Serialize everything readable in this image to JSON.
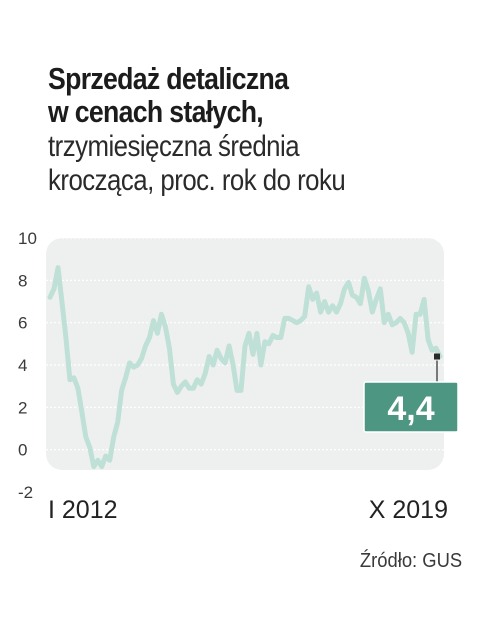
{
  "title": {
    "line1": "Sprzedaż detaliczna",
    "line2": "w cenach stałych,"
  },
  "subtitle": {
    "line1": "trzymiesięczna średnia",
    "line2": "krocząca, proc. rok do roku"
  },
  "source": "Źródło: GUS",
  "colors": {
    "line": "#bfe0d6",
    "panel": "#eef0ef",
    "callout_bg": "#4c9682",
    "callout_text": "#ffffff",
    "text": "#222222"
  },
  "chart_data": {
    "type": "line",
    "x_start_label": "I 2012",
    "x_end_label": "X 2019",
    "y_ticks": [
      "10",
      "8",
      "6",
      "4",
      "2",
      "0",
      "-2"
    ],
    "ylim": [
      -2,
      10
    ],
    "grid": true,
    "callout": {
      "label": "4,4",
      "value": 4.4
    },
    "series": [
      {
        "values": [
          7.2,
          7.6,
          8.6,
          7.0,
          5.3,
          3.3,
          3.4,
          2.9,
          1.8,
          0.6,
          0.1,
          -0.8,
          -0.5,
          -0.8,
          -0.3,
          -0.5,
          0.6,
          1.3,
          2.8,
          3.4,
          4.1,
          3.9,
          4.0,
          4.3,
          4.9,
          5.3,
          6.1,
          5.5,
          6.4,
          5.8,
          4.8,
          3.1,
          2.7,
          3.0,
          3.2,
          2.9,
          2.9,
          3.3,
          3.1,
          3.6,
          4.4,
          4.0,
          4.7,
          4.3,
          4.1,
          4.9,
          4.0,
          2.8,
          2.8,
          4.9,
          5.5,
          4.5,
          5.5,
          4.0,
          5.1,
          5.0,
          5.4,
          5.3,
          5.3,
          6.2,
          6.2,
          6.1,
          6.0,
          6.1,
          6.3,
          7.7,
          7.1,
          7.4,
          6.5,
          7.0,
          6.5,
          6.8,
          6.5,
          6.9,
          7.6,
          7.9,
          7.3,
          7.2,
          6.9,
          8.1,
          7.5,
          6.5,
          7.1,
          7.6,
          6.0,
          6.4,
          5.9,
          6.0,
          6.2,
          6.0,
          5.5,
          4.6,
          6.4,
          6.4,
          7.1,
          5.2,
          4.7,
          4.8,
          4.4
        ]
      }
    ]
  }
}
